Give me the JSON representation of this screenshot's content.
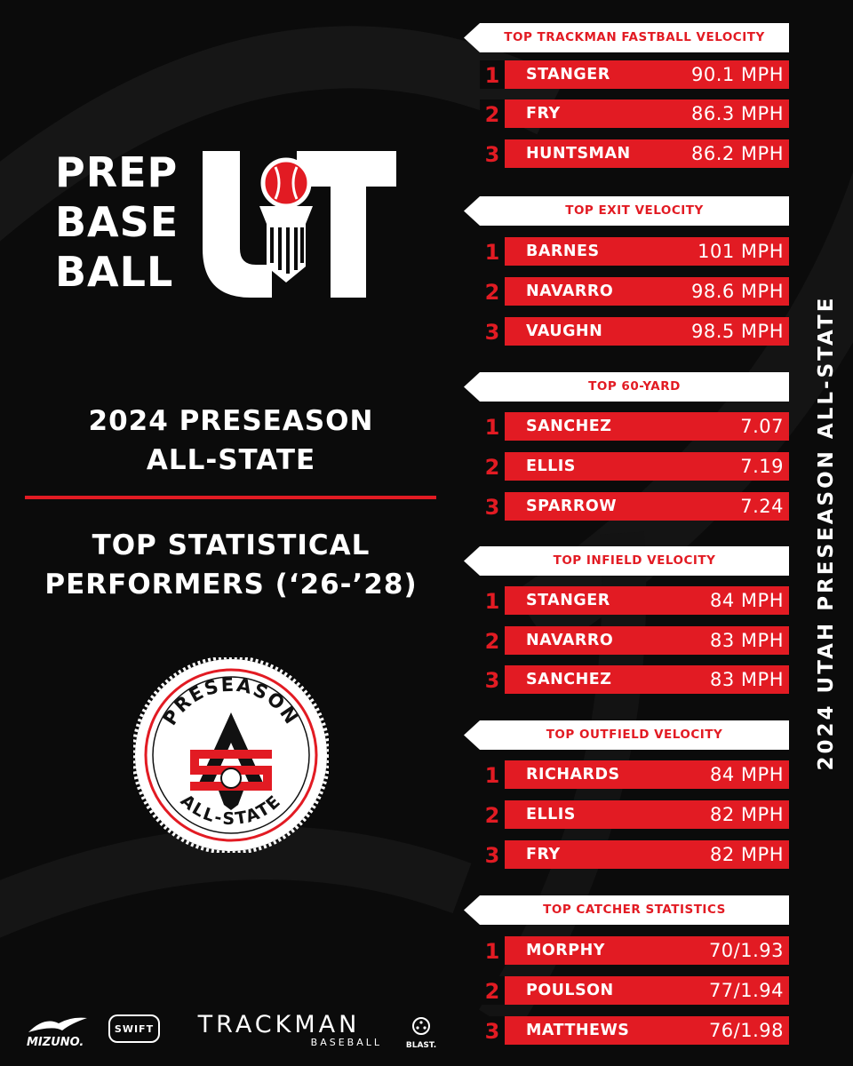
{
  "logo": {
    "lines": [
      "PREP",
      "BASE",
      "BALL"
    ],
    "mark": "UT",
    "accent_color": "#e21b23"
  },
  "headline_1": [
    "2024 PRESEASON",
    "ALL-STATE"
  ],
  "headline_2": [
    "TOP STATISTICAL",
    "PERFORMERS (‘26-’28)"
  ],
  "seal": {
    "top_text": "PRESEASON",
    "bottom_text": "ALL-STATE"
  },
  "side_title": "2024 UTAH PRESEASON ALL-STATE",
  "sponsors": {
    "mizuno": "MIZUNO.",
    "swift": "SWIFT",
    "trackman": "TRACKMAN",
    "trackman_sub": "BASEBALL",
    "blast": "BLAST."
  },
  "sections": [
    {
      "title": "TOP TRACKMAN FASTBALL VELOCITY",
      "rows": [
        {
          "rank": "1",
          "name": "STANGER",
          "value": "90.1 MPH"
        },
        {
          "rank": "2",
          "name": "FRY",
          "value": "86.3 MPH"
        },
        {
          "rank": "3",
          "name": "HUNTSMAN",
          "value": "86.2 MPH"
        }
      ]
    },
    {
      "title": "TOP EXIT VELOCITY",
      "rows": [
        {
          "rank": "1",
          "name": "BARNES",
          "value": "101 MPH"
        },
        {
          "rank": "2",
          "name": "NAVARRO",
          "value": "98.6 MPH"
        },
        {
          "rank": "3",
          "name": "VAUGHN",
          "value": "98.5 MPH"
        }
      ]
    },
    {
      "title": "TOP 60-YARD",
      "rows": [
        {
          "rank": "1",
          "name": "SANCHEZ",
          "value": "7.07"
        },
        {
          "rank": "2",
          "name": "ELLIS",
          "value": "7.19"
        },
        {
          "rank": "3",
          "name": "SPARROW",
          "value": "7.24"
        }
      ]
    },
    {
      "title": "TOP INFIELD VELOCITY",
      "rows": [
        {
          "rank": "1",
          "name": "STANGER",
          "value": "84 MPH"
        },
        {
          "rank": "2",
          "name": "NAVARRO",
          "value": "83 MPH"
        },
        {
          "rank": "3",
          "name": "SANCHEZ",
          "value": "83 MPH"
        }
      ]
    },
    {
      "title": "TOP OUTFIELD VELOCITY",
      "rows": [
        {
          "rank": "1",
          "name": "RICHARDS",
          "value": "84 MPH"
        },
        {
          "rank": "2",
          "name": "ELLIS",
          "value": "82 MPH"
        },
        {
          "rank": "3",
          "name": "FRY",
          "value": "82 MPH"
        }
      ]
    },
    {
      "title": "TOP CATCHER STATISTICS",
      "rows": [
        {
          "rank": "1",
          "name": "MORPHY",
          "value": "70/1.93"
        },
        {
          "rank": "2",
          "name": "POULSON",
          "value": "77/1.94"
        },
        {
          "rank": "3",
          "name": "MATTHEWS",
          "value": "76/1.98"
        }
      ]
    }
  ]
}
